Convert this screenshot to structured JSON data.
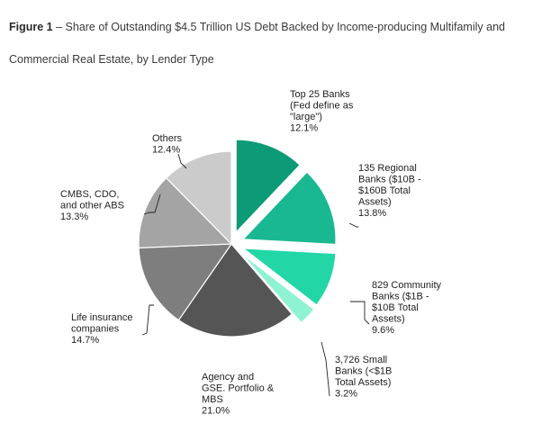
{
  "figure": {
    "label": "Figure 1",
    "title": "Share of Outstanding $4.5 Trillion US Debt Backed by Income-producing Multifamily and Commercial Real Estate, by Lender Type"
  },
  "chart_data": {
    "type": "pie",
    "title": "Share of Outstanding $4.5 Trillion US Debt Backed by Income-producing Multifamily and Commercial Real Estate, by Lender Type",
    "unit": "%",
    "slices": [
      {
        "label": "Top 25 Banks (Fed define as \"large\")",
        "lines": [
          "Top 25 Banks",
          "(Fed define as",
          "\"large\")",
          "12.1%"
        ],
        "value": 12.1,
        "color": "#0d9a76",
        "exploded": true
      },
      {
        "label": "135 Regional Banks ($10B - $160B Total Assets)",
        "lines": [
          "135 Regional",
          "Banks ($10B -",
          "$160B Total",
          "Assets)",
          "13.8%"
        ],
        "value": 13.8,
        "color": "#19b891",
        "exploded": true
      },
      {
        "label": "829 Community Banks ($1B - $10B Total Assets)",
        "lines": [
          "829 Community",
          "Banks ($1B -",
          "$10B Total",
          "Assets)",
          "9.6%"
        ],
        "value": 9.6,
        "color": "#22d6a6",
        "exploded": true
      },
      {
        "label": "3,726 Small Banks (<$1B Total Assets)",
        "lines": [
          "3,726 Small",
          "Banks (<$1B",
          "Total Assets)",
          "3.2%"
        ],
        "value": 3.2,
        "color": "#8ff2d3",
        "exploded": true
      },
      {
        "label": "Agency and GSE. Portfolio & MBS",
        "lines": [
          "Agency and",
          "GSE. Portfolio &",
          "MBS",
          "21.0%"
        ],
        "value": 21.0,
        "color": "#555555",
        "exploded": false
      },
      {
        "label": "Life insurance companies",
        "lines": [
          "Life insurance",
          "companies",
          "14.7%"
        ],
        "value": 14.7,
        "color": "#7e7e7e",
        "exploded": false
      },
      {
        "label": "CMBS, CDO, and other ABS",
        "lines": [
          "CMBS, CDO,",
          "and other ABS",
          "13.3%"
        ],
        "value": 13.3,
        "color": "#a4a4a4",
        "exploded": false
      },
      {
        "label": "Others",
        "lines": [
          "Others",
          "12.4%"
        ],
        "value": 12.4,
        "color": "#cbcbcb",
        "exploded": false
      }
    ]
  }
}
